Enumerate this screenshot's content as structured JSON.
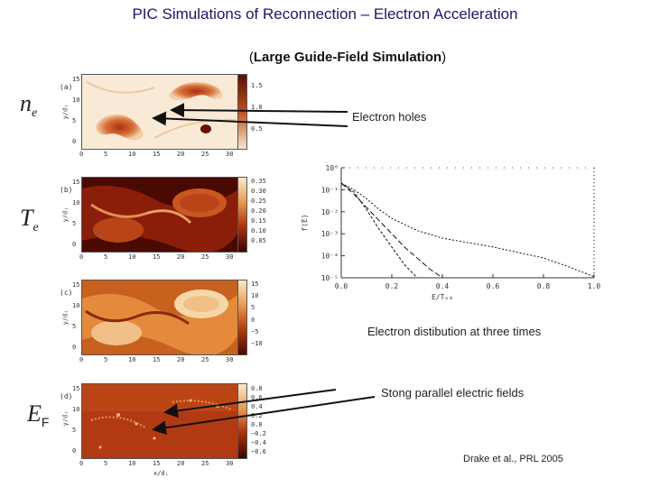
{
  "title": "PIC Simulations of Reconnection – Electron Acceleration",
  "subtitle": "Large Guide-Field Simulation",
  "variables": {
    "ne_base": "n",
    "ne_sub": "e",
    "te_base": "T",
    "te_sub": "e",
    "ef_base": "E",
    "ef_sub": "F"
  },
  "panels": {
    "a": {
      "tag": "(a)",
      "cb_ticks": [
        "1.5",
        "1.0",
        "0.5"
      ]
    },
    "b": {
      "tag": "(b)",
      "cb_ticks": [
        "0.35",
        "0.30",
        "0.25",
        "0.20",
        "0.15",
        "0.10",
        "0.05"
      ]
    },
    "c": {
      "tag": "(c)",
      "cb_ticks": [
        "15",
        "10",
        "5",
        "0",
        "−5",
        "−10"
      ]
    },
    "d": {
      "tag": "(d)",
      "cb_ticks": [
        "0.8",
        "0.6",
        "0.4",
        "0.2",
        "0.0",
        "−0.2",
        "−0.4",
        "−0.6"
      ]
    }
  },
  "y_axis_label": "y/dᵢ",
  "x_axis_label": "x/dᵢ",
  "y_ticks": [
    "15",
    "10",
    "5",
    "0"
  ],
  "x_ticks": [
    "0",
    "5",
    "10",
    "15",
    "20",
    "25",
    "30"
  ],
  "annotations": {
    "holes": "Electron holes",
    "distribution": "Electron distibution at three times",
    "fields": "Stong parallel electric fields",
    "citation": "Drake et al., PRL 2005"
  },
  "chart_data": {
    "type": "line",
    "xlabel": "E/Tₑ₀",
    "ylabel": "f(E)",
    "x_ticks": [
      "0.0",
      "0.2",
      "0.4",
      "0.6",
      "0.8",
      "1.0"
    ],
    "y_ticks": [
      "10⁰",
      "10⁻¹",
      "10⁻²",
      "10⁻³",
      "10⁻⁴",
      "10⁻⁵"
    ],
    "xlim": [
      0,
      1.0
    ],
    "ylim": [
      -5,
      0
    ],
    "log_y": true,
    "series": [
      {
        "x": [
          0.0,
          0.05,
          0.1,
          0.15,
          0.2,
          0.25,
          0.3
        ],
        "y": [
          -0.7,
          -1.1,
          -1.9,
          -2.8,
          -3.6,
          -4.4,
          -5.0
        ]
      },
      {
        "x": [
          0.0,
          0.05,
          0.1,
          0.15,
          0.2,
          0.25,
          0.3,
          0.35,
          0.4
        ],
        "y": [
          -0.7,
          -1.2,
          -1.8,
          -2.4,
          -3.0,
          -3.6,
          -4.1,
          -4.6,
          -5.0
        ]
      },
      {
        "x": [
          0.0,
          0.05,
          0.1,
          0.15,
          0.2,
          0.3,
          0.4,
          0.5,
          0.6,
          0.7,
          0.8,
          0.9,
          1.0
        ],
        "y": [
          -0.7,
          -1.0,
          -1.4,
          -1.9,
          -2.3,
          -2.85,
          -3.2,
          -3.4,
          -3.6,
          -3.85,
          -4.1,
          -4.5,
          -4.95
        ]
      }
    ]
  }
}
